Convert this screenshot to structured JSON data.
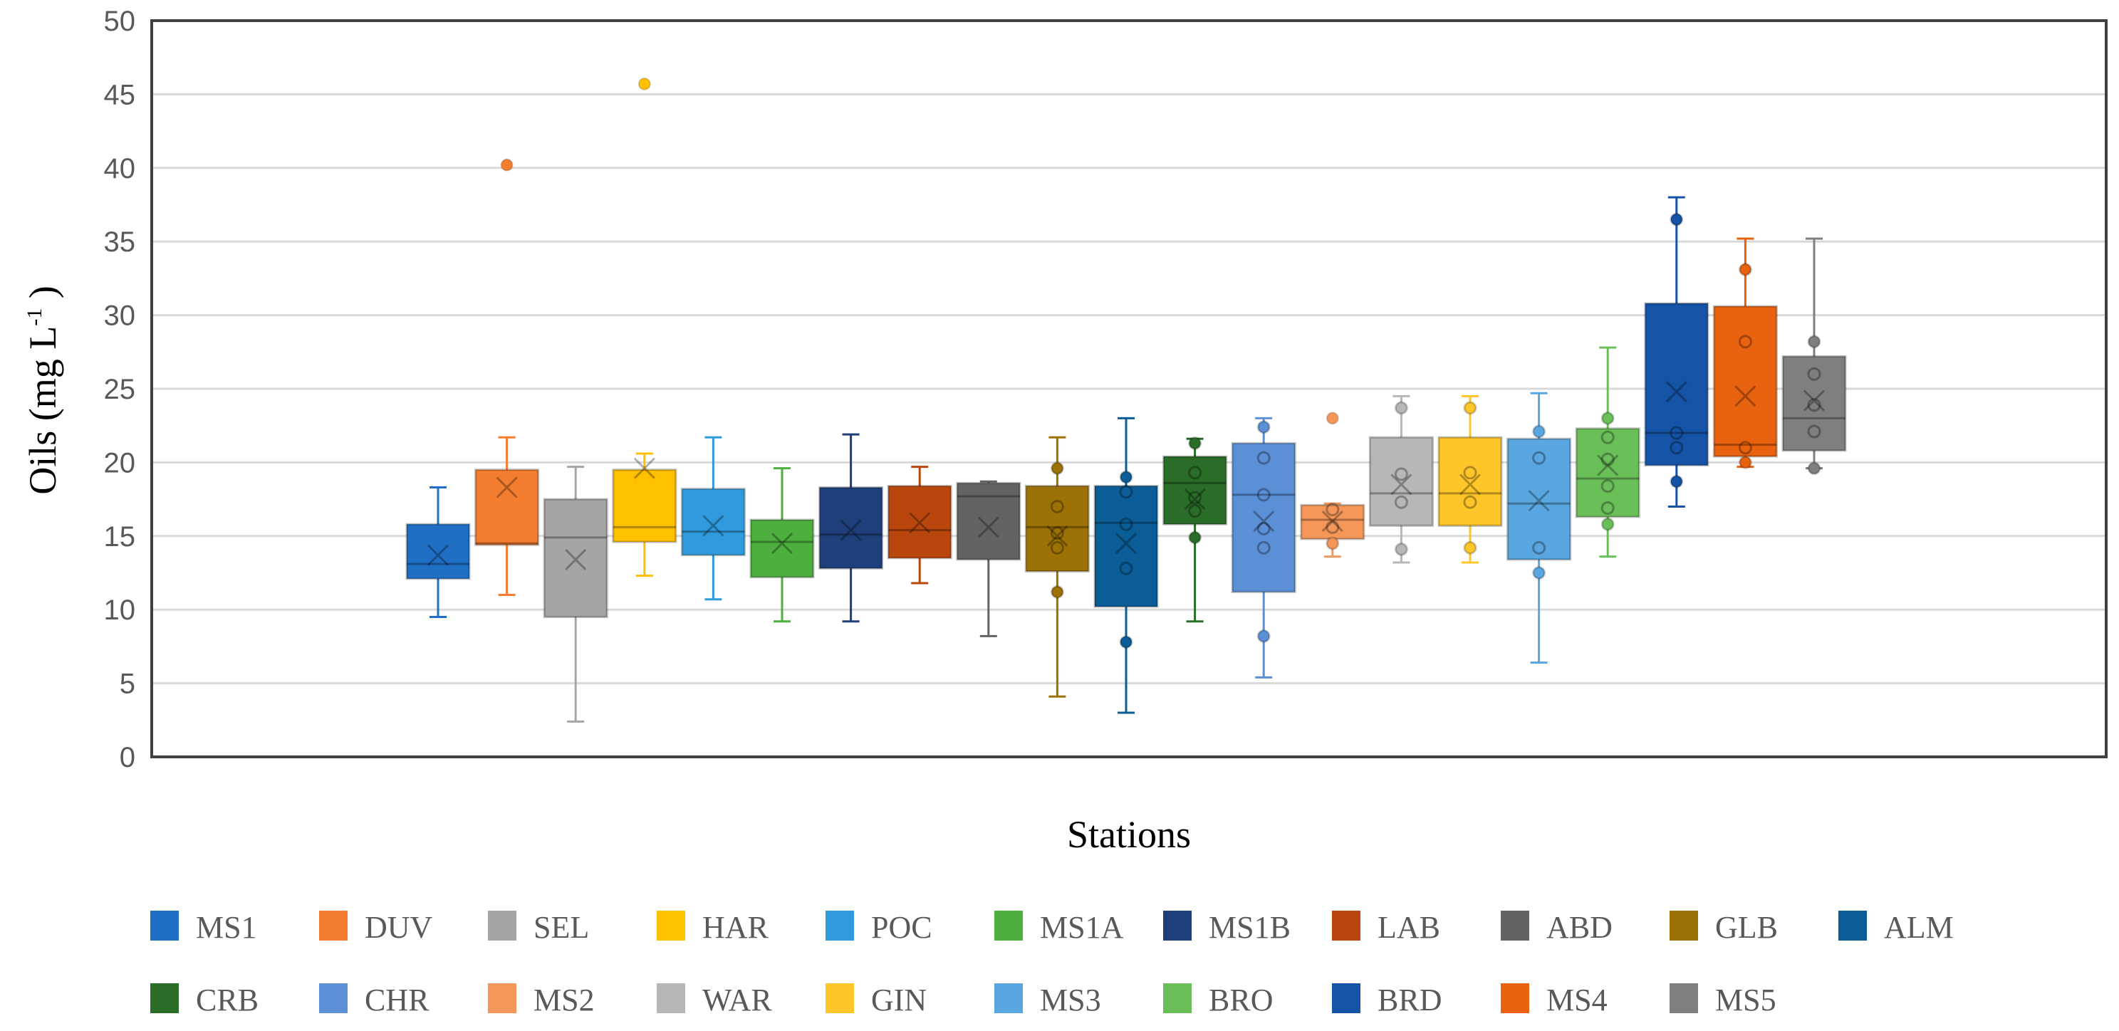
{
  "chart_data": {
    "type": "box",
    "title": "",
    "xlabel": "Stations",
    "ylabel": "Oils (mg L",
    "ylabel_sup": "-1",
    "ylabel_close": " )",
    "ylim": [
      0,
      50
    ],
    "yticks": [
      0,
      5,
      10,
      15,
      20,
      25,
      30,
      35,
      40,
      45,
      50
    ],
    "grid": true,
    "legend_position": "bottom",
    "series": [
      {
        "name": "MS1",
        "color": "#1f6fc5",
        "min": 9.5,
        "q1": 12.1,
        "median": 13.1,
        "q3": 15.8,
        "max": 18.3,
        "mean": 13.7,
        "points": [],
        "outliers": []
      },
      {
        "name": "DUV",
        "color": "#f47d30",
        "min": 11.0,
        "q1": 14.4,
        "median": 14.5,
        "q3": 19.5,
        "max": 21.7,
        "mean": 18.3,
        "points": [],
        "outliers": [
          40.2
        ]
      },
      {
        "name": "SEL",
        "color": "#a5a5a5",
        "min": 2.4,
        "q1": 9.5,
        "median": 14.9,
        "q3": 17.5,
        "max": 19.7,
        "mean": 13.4,
        "points": [],
        "outliers": []
      },
      {
        "name": "HAR",
        "color": "#ffc000",
        "min": 12.3,
        "q1": 14.6,
        "median": 15.6,
        "q3": 19.5,
        "max": 20.6,
        "mean": 19.6,
        "points": [],
        "outliers": [
          45.7
        ]
      },
      {
        "name": "POC",
        "color": "#2f9bdc",
        "min": 10.7,
        "q1": 13.7,
        "median": 15.3,
        "q3": 18.2,
        "max": 21.7,
        "mean": 15.7,
        "points": [],
        "outliers": []
      },
      {
        "name": "MS1A",
        "color": "#4caf3e",
        "min": 9.2,
        "q1": 12.2,
        "median": 14.6,
        "q3": 16.1,
        "max": 19.6,
        "mean": 14.5,
        "points": [],
        "outliers": []
      },
      {
        "name": "MS1B",
        "color": "#1f3f7a",
        "min": 9.2,
        "q1": 12.8,
        "median": 15.1,
        "q3": 18.3,
        "max": 21.9,
        "mean": 15.4,
        "points": [],
        "outliers": []
      },
      {
        "name": "LAB",
        "color": "#b9470d",
        "min": 11.8,
        "q1": 13.5,
        "median": 15.4,
        "q3": 18.4,
        "max": 19.7,
        "mean": 15.9,
        "points": [],
        "outliers": []
      },
      {
        "name": "ABD",
        "color": "#636363",
        "min": 8.2,
        "q1": 13.4,
        "median": 17.7,
        "q3": 18.6,
        "max": 18.7,
        "mean": 15.6,
        "points": [],
        "outliers": []
      },
      {
        "name": "GLB",
        "color": "#9c7206",
        "min": 4.1,
        "q1": 12.6,
        "median": 15.6,
        "q3": 18.4,
        "max": 21.7,
        "mean": 15.0,
        "points": [
          19.6,
          17.0,
          15.2,
          14.2,
          11.2
        ],
        "outliers": []
      },
      {
        "name": "ALM",
        "color": "#0a5d96",
        "min": 3.0,
        "q1": 10.2,
        "median": 15.9,
        "q3": 18.4,
        "max": 23.0,
        "mean": 14.5,
        "points": [
          19.0,
          18.0,
          15.8,
          12.8,
          7.8
        ],
        "outliers": []
      },
      {
        "name": "CRB",
        "color": "#2a6d28",
        "min": 9.2,
        "q1": 15.8,
        "median": 18.6,
        "q3": 20.4,
        "max": 21.6,
        "mean": 17.5,
        "points": [
          21.3,
          19.3,
          17.6,
          16.7,
          14.9
        ],
        "outliers": []
      },
      {
        "name": "CHR",
        "color": "#5b8fd6",
        "min": 5.4,
        "q1": 11.2,
        "median": 17.8,
        "q3": 21.3,
        "max": 23.0,
        "mean": 16.0,
        "points": [
          22.4,
          20.3,
          17.8,
          15.5,
          14.2,
          8.2
        ],
        "outliers": []
      },
      {
        "name": "MS2",
        "color": "#f6975a",
        "min": 13.6,
        "q1": 14.8,
        "median": 16.1,
        "q3": 17.1,
        "max": 17.2,
        "mean": 16.0,
        "points": [
          16.8,
          15.6,
          14.5
        ],
        "outliers": [
          23.0
        ]
      },
      {
        "name": "WAR",
        "color": "#b7b7b7",
        "min": 13.2,
        "q1": 15.7,
        "median": 17.9,
        "q3": 21.7,
        "max": 24.5,
        "mean": 18.5,
        "points": [
          23.7,
          19.2,
          17.3,
          14.1
        ],
        "outliers": []
      },
      {
        "name": "GIN",
        "color": "#ffc629",
        "min": 13.2,
        "q1": 15.7,
        "median": 17.9,
        "q3": 21.7,
        "max": 24.5,
        "mean": 18.5,
        "points": [
          23.7,
          19.3,
          17.3,
          14.2
        ],
        "outliers": []
      },
      {
        "name": "MS3",
        "color": "#5aa6e0",
        "min": 6.4,
        "q1": 13.4,
        "median": 17.2,
        "q3": 21.6,
        "max": 24.7,
        "mean": 17.4,
        "points": [
          22.1,
          20.3,
          14.2,
          12.5
        ],
        "outliers": []
      },
      {
        "name": "BRO",
        "color": "#6bbf59",
        "min": 13.6,
        "q1": 16.3,
        "median": 18.9,
        "q3": 22.3,
        "max": 27.8,
        "mean": 19.8,
        "points": [
          23.0,
          21.7,
          20.2,
          18.4,
          16.9,
          15.8
        ],
        "outliers": []
      },
      {
        "name": "BRD",
        "color": "#1553a6",
        "min": 17.0,
        "q1": 19.8,
        "median": 22.0,
        "q3": 30.8,
        "max": 38.0,
        "mean": 24.8,
        "points": [
          36.5,
          22.0,
          21.0,
          18.7
        ],
        "outliers": []
      },
      {
        "name": "MS4",
        "color": "#e8620f",
        "min": 19.7,
        "q1": 20.4,
        "median": 21.2,
        "q3": 30.6,
        "max": 35.2,
        "mean": 24.5,
        "points": [
          33.1,
          28.2,
          21.0,
          20.0
        ],
        "outliers": []
      },
      {
        "name": "MS5",
        "color": "#7f7f7f",
        "min": 19.6,
        "q1": 20.8,
        "median": 23.0,
        "q3": 27.2,
        "max": 35.2,
        "mean": 24.2,
        "points": [
          28.2,
          26.0,
          23.9,
          22.1,
          19.6
        ],
        "outliers": []
      }
    ]
  }
}
